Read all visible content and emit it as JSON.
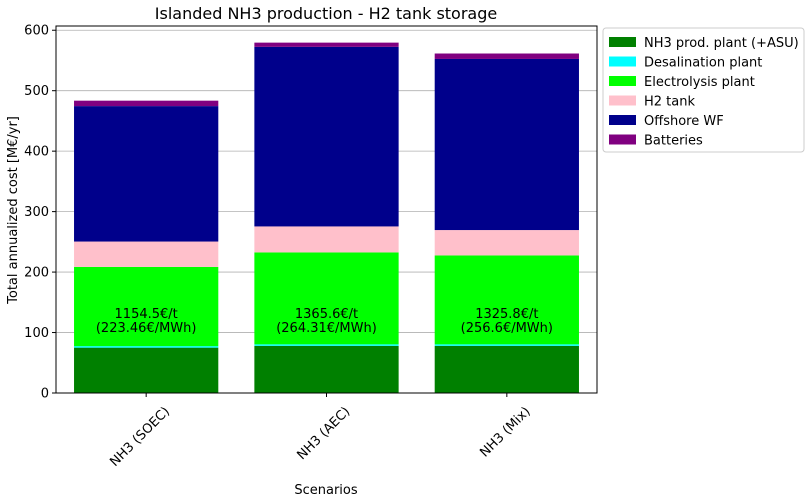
{
  "chart_data": {
    "type": "bar",
    "stacked": true,
    "title": "Islanded NH3 production - H2 tank storage",
    "xlabel": "Scenarios",
    "ylabel": "Total annualized cost [M€/yr]",
    "ylim": [
      0,
      607
    ],
    "yticks": [
      0,
      100,
      200,
      300,
      400,
      500,
      600
    ],
    "grid": "horizontal",
    "legend_position": "outside-right",
    "categories": [
      "NH3 (SOEC)",
      "NH3 (AEC)",
      "NH3 (Mix)"
    ],
    "series": [
      {
        "name": "NH3 prod. plant (+ASU)",
        "color": "#008000",
        "values": [
          75,
          78,
          78
        ]
      },
      {
        "name": "Desalination plant",
        "color": "#00ffff",
        "values": [
          2.5,
          2.5,
          2.5
        ]
      },
      {
        "name": "Electrolysis plant",
        "color": "#00ff00",
        "values": [
          131,
          152,
          147
        ]
      },
      {
        "name": "H2 tank",
        "color": "#ffc0cb",
        "values": [
          42,
          43,
          42
        ]
      },
      {
        "name": "Offshore WF",
        "color": "#00008b",
        "values": [
          224,
          297,
          283
        ]
      },
      {
        "name": "Batteries",
        "color": "#800080",
        "values": [
          9,
          7,
          9
        ]
      }
    ],
    "annotations": [
      {
        "line1": "1154.5€/t",
        "line2": "(223.46€/MWh)"
      },
      {
        "line1": "1365.6€/t",
        "line2": "(264.31€/MWh)"
      },
      {
        "line1": "1325.8€/t",
        "line2": "(256.6€/MWh)"
      }
    ]
  }
}
